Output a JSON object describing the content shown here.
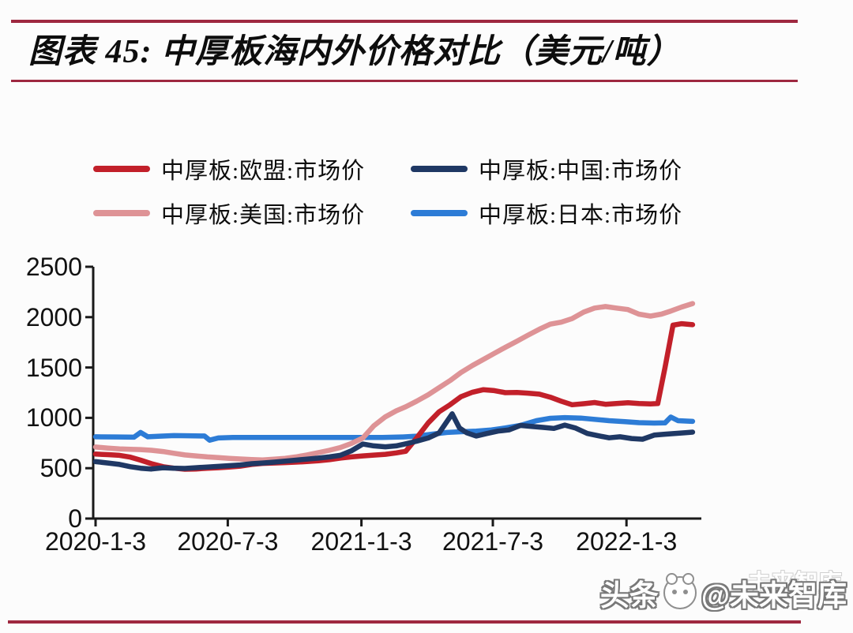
{
  "title": {
    "label": "图表 45:  中厚板海内外价格对比（美元/吨）"
  },
  "colors": {
    "rule": "#9e2840",
    "axis": "#1a1a1a",
    "eu_red": "#c2202a",
    "china_navy": "#1f3864",
    "us_pink": "#de9396",
    "japan_blue": "#2d7cd6"
  },
  "legend": [
    {
      "name": "中厚板:欧盟:市场价",
      "color": "#c2202a"
    },
    {
      "name": "中厚板:中国:市场价",
      "color": "#1f3864"
    },
    {
      "name": "中厚板:美国:市场价",
      "color": "#de9396"
    },
    {
      "name": "中厚板:日本:市场价",
      "color": "#2d7cd6"
    }
  ],
  "watermark": {
    "prefix": "头条",
    "handle": "@未来智库",
    "ghost": "未来智库"
  },
  "chart_data": {
    "type": "line",
    "title": "中厚板海内外价格对比（美元/吨）",
    "xlabel": "",
    "ylabel": "",
    "ylim": [
      0,
      2500
    ],
    "yticks": [
      0,
      500,
      1000,
      1500,
      2000,
      2500
    ],
    "xticks": [
      {
        "label": "2020-1-3",
        "date": "2020-01-03"
      },
      {
        "label": "2020-7-3",
        "date": "2020-07-03"
      },
      {
        "label": "2021-1-3",
        "date": "2021-01-03"
      },
      {
        "label": "2021-7-3",
        "date": "2021-07-03"
      },
      {
        "label": "2022-1-3",
        "date": "2022-01-03"
      }
    ],
    "x_start": "2020-01-03",
    "x_end": "2022-04-04",
    "grid": false,
    "legend_position": "top",
    "series": [
      {
        "key": "eu",
        "name": "中厚板:欧盟:市场价",
        "color": "#c2202a",
        "z": 3,
        "points": [
          [
            "2020-01-03",
            640
          ],
          [
            "2020-01-20",
            635
          ],
          [
            "2020-02-05",
            628
          ],
          [
            "2020-02-20",
            610
          ],
          [
            "2020-03-05",
            580
          ],
          [
            "2020-03-20",
            545
          ],
          [
            "2020-04-05",
            515
          ],
          [
            "2020-04-20",
            500
          ],
          [
            "2020-05-05",
            490
          ],
          [
            "2020-05-20",
            492
          ],
          [
            "2020-06-05",
            500
          ],
          [
            "2020-06-20",
            505
          ],
          [
            "2020-07-05",
            512
          ],
          [
            "2020-07-20",
            520
          ],
          [
            "2020-08-05",
            538
          ],
          [
            "2020-08-20",
            548
          ],
          [
            "2020-09-05",
            552
          ],
          [
            "2020-09-20",
            556
          ],
          [
            "2020-10-05",
            560
          ],
          [
            "2020-10-20",
            566
          ],
          [
            "2020-11-05",
            574
          ],
          [
            "2020-11-20",
            585
          ],
          [
            "2020-12-05",
            600
          ],
          [
            "2020-12-20",
            612
          ],
          [
            "2021-01-05",
            622
          ],
          [
            "2021-01-20",
            630
          ],
          [
            "2021-02-05",
            638
          ],
          [
            "2021-02-20",
            652
          ],
          [
            "2021-03-05",
            668
          ],
          [
            "2021-03-20",
            800
          ],
          [
            "2021-04-05",
            950
          ],
          [
            "2021-04-20",
            1060
          ],
          [
            "2021-05-05",
            1130
          ],
          [
            "2021-05-20",
            1210
          ],
          [
            "2021-06-05",
            1255
          ],
          [
            "2021-06-20",
            1280
          ],
          [
            "2021-07-05",
            1270
          ],
          [
            "2021-07-20",
            1250
          ],
          [
            "2021-08-05",
            1252
          ],
          [
            "2021-08-20",
            1245
          ],
          [
            "2021-09-05",
            1235
          ],
          [
            "2021-09-20",
            1205
          ],
          [
            "2021-10-05",
            1165
          ],
          [
            "2021-10-20",
            1130
          ],
          [
            "2021-11-05",
            1140
          ],
          [
            "2021-11-20",
            1152
          ],
          [
            "2021-12-05",
            1135
          ],
          [
            "2021-12-20",
            1142
          ],
          [
            "2022-01-05",
            1150
          ],
          [
            "2022-01-20",
            1142
          ],
          [
            "2022-02-05",
            1138
          ],
          [
            "2022-02-15",
            1142
          ],
          [
            "2022-02-25",
            1500
          ],
          [
            "2022-03-08",
            1920
          ],
          [
            "2022-03-20",
            1935
          ],
          [
            "2022-04-04",
            1925
          ]
        ]
      },
      {
        "key": "china",
        "name": "中厚板:中国:市场价",
        "color": "#1f3864",
        "z": 4,
        "points": [
          [
            "2020-01-03",
            565
          ],
          [
            "2020-01-20",
            552
          ],
          [
            "2020-02-05",
            538
          ],
          [
            "2020-02-20",
            515
          ],
          [
            "2020-03-05",
            500
          ],
          [
            "2020-03-20",
            492
          ],
          [
            "2020-04-05",
            505
          ],
          [
            "2020-04-20",
            500
          ],
          [
            "2020-05-05",
            498
          ],
          [
            "2020-05-20",
            505
          ],
          [
            "2020-06-05",
            512
          ],
          [
            "2020-06-20",
            518
          ],
          [
            "2020-07-05",
            525
          ],
          [
            "2020-07-20",
            532
          ],
          [
            "2020-08-05",
            545
          ],
          [
            "2020-08-20",
            552
          ],
          [
            "2020-09-05",
            560
          ],
          [
            "2020-09-20",
            570
          ],
          [
            "2020-10-05",
            580
          ],
          [
            "2020-10-20",
            590
          ],
          [
            "2020-11-05",
            600
          ],
          [
            "2020-11-20",
            612
          ],
          [
            "2020-12-05",
            628
          ],
          [
            "2020-12-20",
            672
          ],
          [
            "2021-01-05",
            740
          ],
          [
            "2021-01-20",
            722
          ],
          [
            "2021-02-05",
            712
          ],
          [
            "2021-02-20",
            722
          ],
          [
            "2021-03-05",
            742
          ],
          [
            "2021-03-20",
            768
          ],
          [
            "2021-04-05",
            800
          ],
          [
            "2021-04-20",
            850
          ],
          [
            "2021-05-08",
            1040
          ],
          [
            "2021-05-18",
            900
          ],
          [
            "2021-05-28",
            852
          ],
          [
            "2021-06-10",
            820
          ],
          [
            "2021-06-25",
            845
          ],
          [
            "2021-07-10",
            868
          ],
          [
            "2021-07-25",
            880
          ],
          [
            "2021-08-10",
            925
          ],
          [
            "2021-08-25",
            915
          ],
          [
            "2021-09-10",
            905
          ],
          [
            "2021-09-25",
            895
          ],
          [
            "2021-10-10",
            928
          ],
          [
            "2021-10-25",
            898
          ],
          [
            "2021-11-10",
            845
          ],
          [
            "2021-11-25",
            822
          ],
          [
            "2021-12-10",
            802
          ],
          [
            "2021-12-25",
            812
          ],
          [
            "2022-01-10",
            795
          ],
          [
            "2022-01-25",
            788
          ],
          [
            "2022-02-10",
            828
          ],
          [
            "2022-02-25",
            838
          ],
          [
            "2022-03-10",
            845
          ],
          [
            "2022-03-25",
            852
          ],
          [
            "2022-04-04",
            858
          ]
        ]
      },
      {
        "key": "us",
        "name": "中厚板:美国:市场价",
        "color": "#de9396",
        "z": 2,
        "points": [
          [
            "2020-01-03",
            710
          ],
          [
            "2020-01-20",
            700
          ],
          [
            "2020-02-05",
            692
          ],
          [
            "2020-02-20",
            688
          ],
          [
            "2020-03-05",
            685
          ],
          [
            "2020-03-20",
            678
          ],
          [
            "2020-04-05",
            665
          ],
          [
            "2020-04-20",
            648
          ],
          [
            "2020-05-05",
            632
          ],
          [
            "2020-05-20",
            622
          ],
          [
            "2020-06-05",
            612
          ],
          [
            "2020-06-20",
            605
          ],
          [
            "2020-07-05",
            598
          ],
          [
            "2020-07-20",
            592
          ],
          [
            "2020-08-05",
            586
          ],
          [
            "2020-08-20",
            582
          ],
          [
            "2020-09-05",
            590
          ],
          [
            "2020-09-20",
            598
          ],
          [
            "2020-10-05",
            612
          ],
          [
            "2020-10-20",
            632
          ],
          [
            "2020-11-05",
            655
          ],
          [
            "2020-11-20",
            678
          ],
          [
            "2020-12-05",
            705
          ],
          [
            "2020-12-20",
            745
          ],
          [
            "2021-01-05",
            800
          ],
          [
            "2021-01-20",
            920
          ],
          [
            "2021-02-05",
            1010
          ],
          [
            "2021-02-20",
            1070
          ],
          [
            "2021-03-05",
            1110
          ],
          [
            "2021-03-20",
            1165
          ],
          [
            "2021-04-05",
            1230
          ],
          [
            "2021-04-20",
            1300
          ],
          [
            "2021-05-05",
            1370
          ],
          [
            "2021-05-20",
            1450
          ],
          [
            "2021-06-05",
            1520
          ],
          [
            "2021-06-20",
            1580
          ],
          [
            "2021-07-05",
            1640
          ],
          [
            "2021-07-20",
            1700
          ],
          [
            "2021-08-05",
            1760
          ],
          [
            "2021-08-20",
            1820
          ],
          [
            "2021-09-05",
            1880
          ],
          [
            "2021-09-20",
            1930
          ],
          [
            "2021-10-05",
            1950
          ],
          [
            "2021-10-20",
            1985
          ],
          [
            "2021-11-05",
            2050
          ],
          [
            "2021-11-20",
            2090
          ],
          [
            "2021-12-05",
            2105
          ],
          [
            "2021-12-20",
            2090
          ],
          [
            "2022-01-05",
            2075
          ],
          [
            "2022-01-20",
            2030
          ],
          [
            "2022-02-05",
            2010
          ],
          [
            "2022-02-20",
            2030
          ],
          [
            "2022-03-05",
            2060
          ],
          [
            "2022-03-20",
            2100
          ],
          [
            "2022-04-04",
            2135
          ]
        ]
      },
      {
        "key": "japan",
        "name": "中厚板:日本:市场价",
        "color": "#2d7cd6",
        "z": 1,
        "points": [
          [
            "2020-01-03",
            812
          ],
          [
            "2020-02-01",
            810
          ],
          [
            "2020-02-25",
            808
          ],
          [
            "2020-03-05",
            855
          ],
          [
            "2020-03-15",
            812
          ],
          [
            "2020-04-01",
            818
          ],
          [
            "2020-04-20",
            824
          ],
          [
            "2020-05-10",
            822
          ],
          [
            "2020-06-01",
            820
          ],
          [
            "2020-06-08",
            778
          ],
          [
            "2020-06-20",
            800
          ],
          [
            "2020-07-10",
            806
          ],
          [
            "2020-08-01",
            806
          ],
          [
            "2020-09-01",
            806
          ],
          [
            "2020-10-01",
            806
          ],
          [
            "2020-11-01",
            806
          ],
          [
            "2020-12-01",
            806
          ],
          [
            "2021-01-01",
            806
          ],
          [
            "2021-02-01",
            806
          ],
          [
            "2021-03-01",
            810
          ],
          [
            "2021-03-20",
            818
          ],
          [
            "2021-04-10",
            838
          ],
          [
            "2021-05-01",
            855
          ],
          [
            "2021-05-20",
            862
          ],
          [
            "2021-06-10",
            868
          ],
          [
            "2021-07-01",
            880
          ],
          [
            "2021-07-20",
            900
          ],
          [
            "2021-08-10",
            925
          ],
          [
            "2021-09-01",
            972
          ],
          [
            "2021-09-20",
            995
          ],
          [
            "2021-10-10",
            1002
          ],
          [
            "2021-11-01",
            998
          ],
          [
            "2021-11-20",
            985
          ],
          [
            "2021-12-10",
            972
          ],
          [
            "2022-01-01",
            962
          ],
          [
            "2022-01-20",
            952
          ],
          [
            "2022-02-10",
            948
          ],
          [
            "2022-02-25",
            950
          ],
          [
            "2022-03-05",
            1008
          ],
          [
            "2022-03-15",
            972
          ],
          [
            "2022-04-04",
            965
          ]
        ]
      }
    ]
  }
}
